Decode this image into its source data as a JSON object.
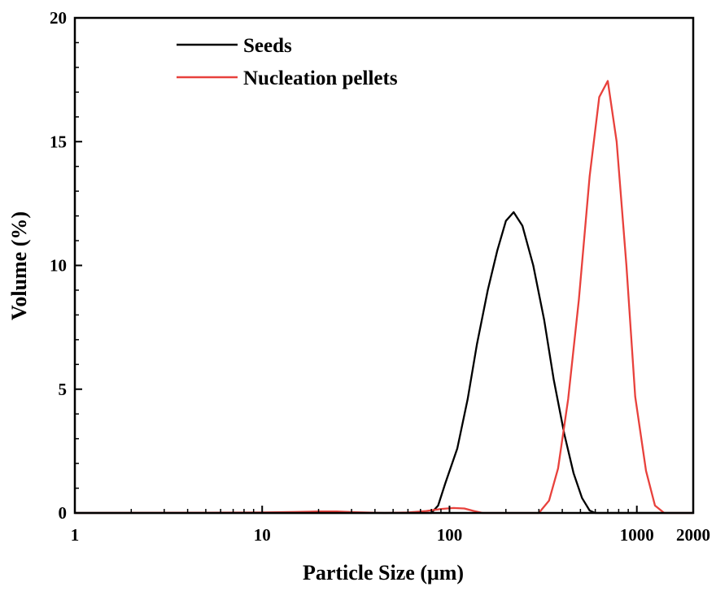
{
  "chart_data": {
    "type": "line",
    "title": "",
    "xlabel": "Particle Size (μm)",
    "ylabel": "Volume (%)",
    "xscale": "log",
    "xlim": [
      1,
      2000
    ],
    "ylim": [
      0,
      20
    ],
    "xticks": [
      1,
      10,
      100,
      1000,
      2000
    ],
    "xtick_labels": [
      "1",
      "10",
      "100",
      "1000",
      "2000"
    ],
    "yticks": [
      0,
      5,
      10,
      15,
      20
    ],
    "ytick_labels": [
      "0",
      "5",
      "10",
      "15",
      "20"
    ],
    "grid": false,
    "legend_position": "top-left",
    "series": [
      {
        "name": "Seeds",
        "color": "#000000",
        "points": [
          [
            1,
            0
          ],
          [
            10,
            0
          ],
          [
            50,
            0
          ],
          [
            80,
            0
          ],
          [
            87,
            0.3
          ],
          [
            95,
            1.2
          ],
          [
            110,
            2.6
          ],
          [
            125,
            4.6
          ],
          [
            140,
            6.8
          ],
          [
            160,
            9.0
          ],
          [
            180,
            10.6
          ],
          [
            200,
            11.8
          ],
          [
            220,
            12.15
          ],
          [
            245,
            11.6
          ],
          [
            280,
            10.0
          ],
          [
            320,
            7.8
          ],
          [
            360,
            5.4
          ],
          [
            410,
            3.2
          ],
          [
            460,
            1.6
          ],
          [
            510,
            0.6
          ],
          [
            560,
            0.1
          ],
          [
            600,
            0
          ],
          [
            2000,
            0
          ]
        ]
      },
      {
        "name": "Nucleation pellets",
        "color": "#e8413c",
        "points": [
          [
            1,
            0
          ],
          [
            5,
            0.01
          ],
          [
            10,
            0.02
          ],
          [
            15,
            0.04
          ],
          [
            20,
            0.06
          ],
          [
            25,
            0.06
          ],
          [
            32,
            0.03
          ],
          [
            45,
            0
          ],
          [
            60,
            0.02
          ],
          [
            75,
            0.08
          ],
          [
            90,
            0.16
          ],
          [
            105,
            0.2
          ],
          [
            120,
            0.18
          ],
          [
            135,
            0.08
          ],
          [
            150,
            0
          ],
          [
            300,
            0
          ],
          [
            340,
            0.5
          ],
          [
            380,
            1.8
          ],
          [
            430,
            4.6
          ],
          [
            490,
            8.6
          ],
          [
            560,
            13.6
          ],
          [
            630,
            16.8
          ],
          [
            700,
            17.45
          ],
          [
            780,
            15.0
          ],
          [
            880,
            10.0
          ],
          [
            980,
            4.7
          ],
          [
            1120,
            1.7
          ],
          [
            1250,
            0.3
          ],
          [
            1400,
            0
          ],
          [
            2000,
            0
          ]
        ]
      }
    ]
  }
}
